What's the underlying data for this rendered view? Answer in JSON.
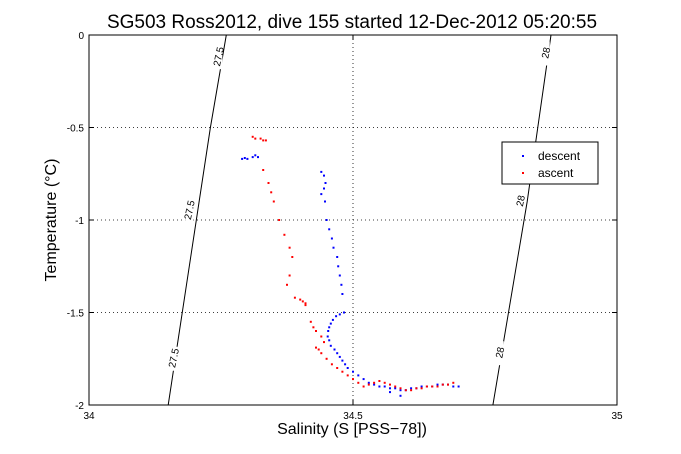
{
  "chart_data": {
    "type": "scatter",
    "title": "SG503 Ross2012, dive 155 started 12-Dec-2012 05:20:55",
    "xlabel": "Salinity (S [PSS−78])",
    "ylabel": "Temperature (°C)",
    "xlim": [
      34,
      35
    ],
    "ylim": [
      -2,
      0
    ],
    "xticks": [
      34,
      34.5,
      35
    ],
    "xtick_labels": [
      "34",
      "34.5",
      "35"
    ],
    "yticks": [
      0,
      -0.5,
      -1,
      -1.5,
      -2
    ],
    "ytick_labels": [
      "0",
      "-0.5",
      "-1",
      "-1.5",
      "-2"
    ],
    "grid": true,
    "legend": "right-upper",
    "colors": {
      "descent": "#0000ff",
      "ascent": "#ff0000",
      "contour": "#000000"
    },
    "contours": [
      {
        "label": "27.5",
        "points": [
          [
            34.15,
            -2.0
          ],
          [
            34.23,
            -0.5
          ],
          [
            34.26,
            0.0
          ]
        ],
        "label_positions": [
          [
            34.245,
            -0.12
          ],
          [
            34.19,
            -0.95
          ],
          [
            34.16,
            -1.75
          ]
        ]
      },
      {
        "label": "28",
        "points": [
          [
            34.765,
            -2.0
          ],
          [
            34.83,
            -0.9
          ],
          [
            34.875,
            0.0
          ]
        ],
        "label_positions": [
          [
            34.865,
            -0.1
          ],
          [
            34.817,
            -0.9
          ],
          [
            34.778,
            -1.72
          ]
        ]
      }
    ],
    "series": [
      {
        "name": "descent",
        "points": [
          [
            34.29,
            -0.67
          ],
          [
            34.295,
            -0.665
          ],
          [
            34.3,
            -0.67
          ],
          [
            34.31,
            -0.66
          ],
          [
            34.315,
            -0.65
          ],
          [
            34.32,
            -0.66
          ],
          [
            34.44,
            -0.74
          ],
          [
            34.445,
            -0.76
          ],
          [
            34.448,
            -0.8
          ],
          [
            34.445,
            -0.83
          ],
          [
            34.44,
            -0.86
          ],
          [
            34.447,
            -0.9
          ],
          [
            34.45,
            -1.0
          ],
          [
            34.455,
            -1.05
          ],
          [
            34.46,
            -1.1
          ],
          [
            34.463,
            -1.15
          ],
          [
            34.47,
            -1.2
          ],
          [
            34.472,
            -1.25
          ],
          [
            34.475,
            -1.3
          ],
          [
            34.478,
            -1.35
          ],
          [
            34.48,
            -1.4
          ],
          [
            34.483,
            -1.5
          ],
          [
            34.475,
            -1.51
          ],
          [
            34.468,
            -1.52
          ],
          [
            34.462,
            -1.54
          ],
          [
            34.458,
            -1.56
          ],
          [
            34.455,
            -1.58
          ],
          [
            34.453,
            -1.6
          ],
          [
            34.452,
            -1.63
          ],
          [
            34.455,
            -1.65
          ],
          [
            34.458,
            -1.68
          ],
          [
            34.465,
            -1.7
          ],
          [
            34.47,
            -1.72
          ],
          [
            34.475,
            -1.74
          ],
          [
            34.48,
            -1.76
          ],
          [
            34.485,
            -1.78
          ],
          [
            34.49,
            -1.8
          ],
          [
            34.5,
            -1.82
          ],
          [
            34.51,
            -1.84
          ],
          [
            34.52,
            -1.86
          ],
          [
            34.53,
            -1.88
          ],
          [
            34.54,
            -1.89
          ],
          [
            34.55,
            -1.9
          ],
          [
            34.56,
            -1.9
          ],
          [
            34.57,
            -1.91
          ],
          [
            34.58,
            -1.91
          ],
          [
            34.59,
            -1.92
          ],
          [
            34.6,
            -1.92
          ],
          [
            34.61,
            -1.91
          ],
          [
            34.62,
            -1.91
          ],
          [
            34.63,
            -1.9
          ],
          [
            34.64,
            -1.9
          ],
          [
            34.65,
            -1.9
          ],
          [
            34.66,
            -1.89
          ],
          [
            34.67,
            -1.89
          ],
          [
            34.68,
            -1.89
          ],
          [
            34.69,
            -1.9
          ],
          [
            34.7,
            -1.9
          ],
          [
            34.59,
            -1.95
          ],
          [
            34.57,
            -1.93
          ]
        ]
      },
      {
        "name": "ascent",
        "points": [
          [
            34.31,
            -0.55
          ],
          [
            34.315,
            -0.56
          ],
          [
            34.325,
            -0.56
          ],
          [
            34.33,
            -0.57
          ],
          [
            34.335,
            -0.57
          ],
          [
            34.33,
            -0.73
          ],
          [
            34.34,
            -0.8
          ],
          [
            34.345,
            -0.85
          ],
          [
            34.35,
            -0.9
          ],
          [
            34.36,
            -1.0
          ],
          [
            34.37,
            -1.08
          ],
          [
            34.38,
            -1.15
          ],
          [
            34.385,
            -1.2
          ],
          [
            34.38,
            -1.3
          ],
          [
            34.375,
            -1.35
          ],
          [
            34.39,
            -1.42
          ],
          [
            34.4,
            -1.43
          ],
          [
            34.405,
            -1.44
          ],
          [
            34.41,
            -1.45
          ],
          [
            34.41,
            -1.46
          ],
          [
            34.42,
            -1.55
          ],
          [
            34.425,
            -1.58
          ],
          [
            34.43,
            -1.6
          ],
          [
            34.44,
            -1.63
          ],
          [
            34.445,
            -1.66
          ],
          [
            34.43,
            -1.69
          ],
          [
            34.435,
            -1.7
          ],
          [
            34.44,
            -1.72
          ],
          [
            34.45,
            -1.75
          ],
          [
            34.46,
            -1.78
          ],
          [
            34.47,
            -1.8
          ],
          [
            34.48,
            -1.82
          ],
          [
            34.49,
            -1.84
          ],
          [
            34.5,
            -1.86
          ],
          [
            34.51,
            -1.88
          ],
          [
            34.52,
            -1.9
          ],
          [
            34.53,
            -1.89
          ],
          [
            34.54,
            -1.88
          ],
          [
            34.55,
            -1.87
          ],
          [
            34.56,
            -1.88
          ],
          [
            34.57,
            -1.89
          ],
          [
            34.58,
            -1.9
          ],
          [
            34.59,
            -1.91
          ],
          [
            34.6,
            -1.92
          ],
          [
            34.61,
            -1.92
          ],
          [
            34.62,
            -1.91
          ],
          [
            34.63,
            -1.91
          ],
          [
            34.64,
            -1.9
          ],
          [
            34.65,
            -1.9
          ],
          [
            34.66,
            -1.9
          ],
          [
            34.67,
            -1.89
          ],
          [
            34.68,
            -1.89
          ],
          [
            34.69,
            -1.88
          ]
        ]
      }
    ]
  }
}
